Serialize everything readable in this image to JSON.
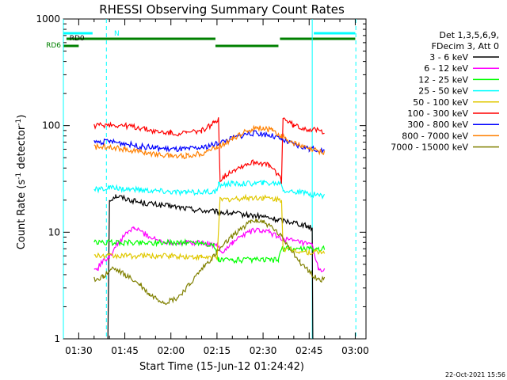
{
  "chart_data": {
    "type": "line",
    "title": "RHESSI Observing Summary Count Rates",
    "xlabel": "Start Time (15-Jun-12 01:24:42)",
    "ylabel_main": "Count Rate (s",
    "ylabel_sup1": "-1",
    "ylabel_mid": " detector",
    "ylabel_sup2": "-1",
    "ylabel_end": ")",
    "yscale": "log",
    "ylim": [
      1,
      1000
    ],
    "xlim_min": [
      85.0,
      183.5
    ],
    "x_ticks": [
      {
        "v": 90,
        "label": "01:30"
      },
      {
        "v": 105,
        "label": "01:45"
      },
      {
        "v": 120,
        "label": "02:00"
      },
      {
        "v": 135,
        "label": "02:15"
      },
      {
        "v": 150,
        "label": "02:30"
      },
      {
        "v": 165,
        "label": "02:45"
      },
      {
        "v": 180,
        "label": "03:00"
      }
    ],
    "y_ticks": [
      {
        "v": 1,
        "label": "1"
      },
      {
        "v": 10,
        "label": "10"
      },
      {
        "v": 100,
        "label": "100"
      },
      {
        "v": 1000,
        "label": "1000"
      }
    ],
    "legend": {
      "header1": "Det 1,3,5,6,9,",
      "header2": "FDecim 3, Att 0",
      "placement": "right"
    },
    "series": [
      {
        "name": "3 - 6 keV",
        "color": "#000000",
        "points": [
          [
            99.5,
            1
          ],
          [
            100,
            20
          ],
          [
            102,
            22
          ],
          [
            110,
            19
          ],
          [
            120,
            17.5
          ],
          [
            130,
            16
          ],
          [
            135,
            15.5
          ],
          [
            140,
            15
          ],
          [
            145,
            14.5
          ],
          [
            150,
            14
          ],
          [
            155,
            13
          ],
          [
            160,
            12.5
          ],
          [
            164,
            11.5
          ],
          [
            166,
            11
          ],
          [
            166.2,
            1
          ]
        ]
      },
      {
        "name": "6 - 12 keV",
        "color": "#ff00ff",
        "points": [
          [
            95,
            4.5
          ],
          [
            96,
            4.5
          ],
          [
            97,
            5
          ],
          [
            100,
            6
          ],
          [
            103,
            8
          ],
          [
            106,
            10
          ],
          [
            108,
            11
          ],
          [
            112,
            9.5
          ],
          [
            115,
            8.5
          ],
          [
            120,
            8
          ],
          [
            125,
            8
          ],
          [
            130,
            8
          ],
          [
            135,
            7.5
          ],
          [
            137,
            6.5
          ],
          [
            140,
            8
          ],
          [
            145,
            10
          ],
          [
            148,
            10.5
          ],
          [
            152,
            10
          ],
          [
            155,
            9
          ],
          [
            158,
            8.5
          ],
          [
            162,
            8
          ],
          [
            166,
            7.5
          ],
          [
            168,
            4.5
          ],
          [
            170,
            4.5
          ]
        ]
      },
      {
        "name": "12 - 25 keV",
        "color": "#00ff00",
        "points": [
          [
            95,
            8
          ],
          [
            130,
            8
          ],
          [
            134,
            7.5
          ],
          [
            135.5,
            5.5
          ],
          [
            140,
            5.5
          ],
          [
            150,
            5.5
          ],
          [
            155,
            5.5
          ],
          [
            156,
            7
          ],
          [
            165,
            7
          ],
          [
            170,
            7
          ]
        ]
      },
      {
        "name": "25 - 50 keV",
        "color": "#00ffff",
        "points": [
          [
            95,
            25
          ],
          [
            100,
            26
          ],
          [
            110,
            25
          ],
          [
            125,
            23.5
          ],
          [
            132,
            24
          ],
          [
            135,
            24
          ],
          [
            135.5,
            28
          ],
          [
            140,
            28.5
          ],
          [
            150,
            29
          ],
          [
            156,
            29
          ],
          [
            156.5,
            25
          ],
          [
            160,
            24
          ],
          [
            170,
            22
          ]
        ]
      },
      {
        "name": "50 - 100 keV",
        "color": "#e0c800",
        "points": [
          [
            95,
            6
          ],
          [
            100,
            6
          ],
          [
            110,
            6
          ],
          [
            120,
            6
          ],
          [
            130,
            5.8
          ],
          [
            135,
            5.8
          ],
          [
            136,
            20
          ],
          [
            145,
            21
          ],
          [
            150,
            21
          ],
          [
            156,
            20
          ],
          [
            156.5,
            7
          ],
          [
            165,
            6.5
          ],
          [
            170,
            6.5
          ]
        ]
      },
      {
        "name": "100 - 300 keV",
        "color": "#ff0000",
        "points": [
          [
            95,
            100
          ],
          [
            100,
            102
          ],
          [
            105,
            100
          ],
          [
            110,
            95
          ],
          [
            115,
            88
          ],
          [
            120,
            85
          ],
          [
            125,
            85
          ],
          [
            130,
            90
          ],
          [
            134,
            105
          ],
          [
            135.5,
            118
          ],
          [
            136,
            31
          ],
          [
            140,
            38
          ],
          [
            145,
            44
          ],
          [
            148,
            46
          ],
          [
            152,
            42
          ],
          [
            155,
            35
          ],
          [
            156,
            30
          ],
          [
            156.5,
            118
          ],
          [
            160,
            100
          ],
          [
            165,
            92
          ],
          [
            170,
            88
          ]
        ]
      },
      {
        "name": "300 - 800 keV",
        "color": "#0000ff",
        "points": [
          [
            95,
            70
          ],
          [
            100,
            71
          ],
          [
            105,
            68
          ],
          [
            110,
            64
          ],
          [
            115,
            62
          ],
          [
            120,
            60
          ],
          [
            125,
            60
          ],
          [
            130,
            62
          ],
          [
            135,
            68
          ],
          [
            140,
            76
          ],
          [
            145,
            84
          ],
          [
            148,
            85
          ],
          [
            152,
            82
          ],
          [
            156,
            74
          ],
          [
            160,
            66
          ],
          [
            165,
            61
          ],
          [
            170,
            58
          ]
        ]
      },
      {
        "name": "800 - 7000 keV",
        "color": "#ff8000",
        "points": [
          [
            95,
            63
          ],
          [
            100,
            64
          ],
          [
            105,
            60
          ],
          [
            110,
            57
          ],
          [
            115,
            54
          ],
          [
            120,
            52
          ],
          [
            125,
            52
          ],
          [
            130,
            55
          ],
          [
            135,
            63
          ],
          [
            140,
            75
          ],
          [
            145,
            90
          ],
          [
            148,
            96
          ],
          [
            150,
            95
          ],
          [
            153,
            90
          ],
          [
            156,
            80
          ],
          [
            160,
            68
          ],
          [
            165,
            60
          ],
          [
            170,
            56
          ]
        ]
      },
      {
        "name": "7000 - 15000 keV",
        "color": "#808000",
        "points": [
          [
            95,
            3.6
          ],
          [
            98,
            3.8
          ],
          [
            101,
            4.6
          ],
          [
            105,
            4.0
          ],
          [
            110,
            3.2
          ],
          [
            113,
            2.6
          ],
          [
            118,
            2.2
          ],
          [
            122,
            2.4
          ],
          [
            126,
            3.2
          ],
          [
            130,
            4.5
          ],
          [
            134,
            6
          ],
          [
            138,
            8
          ],
          [
            142,
            10.5
          ],
          [
            146,
            12.5
          ],
          [
            148,
            13
          ],
          [
            150,
            12.5
          ],
          [
            153,
            11
          ],
          [
            156,
            9
          ],
          [
            159,
            7
          ],
          [
            162,
            5.2
          ],
          [
            165,
            4.3
          ],
          [
            168,
            3.6
          ],
          [
            170,
            3.6
          ]
        ]
      }
    ],
    "vlines_solid_cyan": [
      85.0,
      166.0
    ],
    "vlines_dashed_cyan": [
      99.0,
      180.2
    ],
    "state_bars": {
      "cyan": {
        "color": "#00ffff",
        "segments": [
          [
            85,
            94.5
          ],
          [
            166.5,
            180
          ]
        ],
        "marker": "N",
        "marker_x": 101.5
      },
      "rd0": {
        "label": "RD0",
        "color": "#008000",
        "segments": [
          [
            86,
            134.5
          ],
          [
            155.5,
            180
          ]
        ]
      },
      "rd6": {
        "label": "RD6",
        "color": "#008000",
        "segments": [
          [
            85,
            90
          ],
          [
            134.5,
            155
          ]
        ]
      }
    },
    "legend_label_colors": [
      "#000000"
    ],
    "grid": false
  },
  "footer": {
    "date": "22-Oct-2021 15:56"
  }
}
